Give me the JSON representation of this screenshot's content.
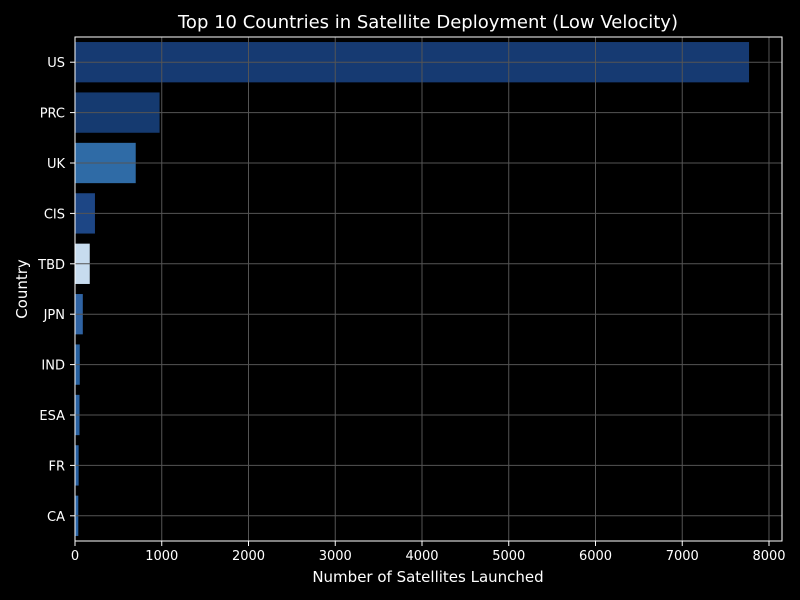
{
  "chart_data": {
    "type": "bar",
    "orientation": "horizontal",
    "title": "Top 10 Countries in Satellite Deployment (Low Velocity)",
    "xlabel": "Number of Satellites Launched",
    "ylabel": "Country",
    "xlim": [
      0,
      8150
    ],
    "x_ticks": [
      0,
      1000,
      2000,
      3000,
      4000,
      5000,
      6000,
      7000,
      8000
    ],
    "grid": true,
    "categories": [
      "US",
      "PRC",
      "UK",
      "CIS",
      "TBD",
      "JPN",
      "IND",
      "ESA",
      "FR",
      "CA"
    ],
    "values": [
      7770,
      975,
      700,
      230,
      170,
      90,
      55,
      52,
      42,
      38
    ],
    "colors": [
      "#163a72",
      "#153a70",
      "#2f6ba6",
      "#1d4685",
      "#c7dcef",
      "#2f63a3",
      "#2761a0",
      "#2a62a2",
      "#275fa0",
      "#2b65a6"
    ]
  }
}
